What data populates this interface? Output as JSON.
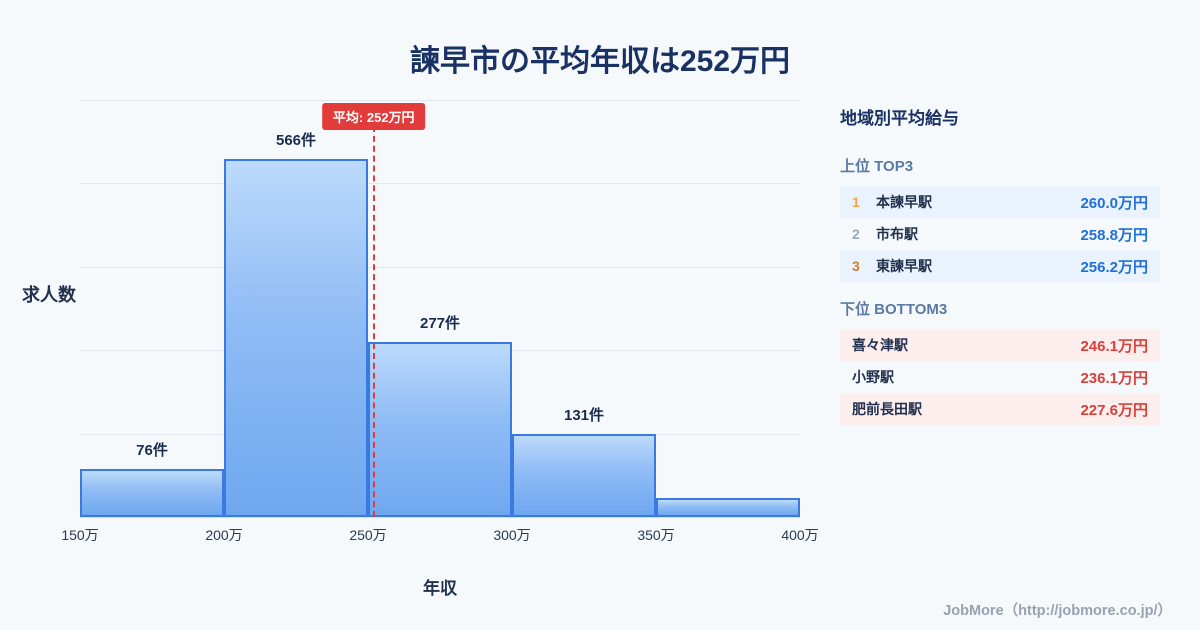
{
  "title": "諫早市の平均年収は252万円",
  "chart_data": {
    "type": "bar",
    "title": "諫早市の平均年収は252万円",
    "xlabel": "年収",
    "ylabel": "求人数",
    "x_ticks": [
      "150万",
      "200万",
      "250万",
      "300万",
      "350万",
      "400万"
    ],
    "x_range_man_yen": [
      150,
      400
    ],
    "ylim": [
      0,
      660
    ],
    "grid": true,
    "legend": "none",
    "bins": [
      {
        "range": "150万-200万",
        "count": 76,
        "label": "76件"
      },
      {
        "range": "200万-250万",
        "count": 566,
        "label": "566件"
      },
      {
        "range": "250万-300万",
        "count": 277,
        "label": "277件"
      },
      {
        "range": "300万-350万",
        "count": 131,
        "label": "131件"
      },
      {
        "range": "350万-400万",
        "count": 30,
        "label": ""
      }
    ],
    "average_line": {
      "value": 252,
      "label": "平均: 252万円"
    }
  },
  "sidebar": {
    "title": "地域別平均給与",
    "top": {
      "heading": "上位 TOP3",
      "rows": [
        {
          "rank": "1",
          "name": "本諫早駅",
          "value": "260.0万円"
        },
        {
          "rank": "2",
          "name": "市布駅",
          "value": "258.8万円"
        },
        {
          "rank": "3",
          "name": "東諫早駅",
          "value": "256.2万円"
        }
      ]
    },
    "bottom": {
      "heading": "下位 BOTTOM3",
      "rows": [
        {
          "name": "喜々津駅",
          "value": "246.1万円"
        },
        {
          "name": "小野駅",
          "value": "236.1万円"
        },
        {
          "name": "肥前長田駅",
          "value": "227.6万円"
        }
      ]
    }
  },
  "footer": "JobMore（http://jobmore.co.jp/）",
  "colors": {
    "background": "#f6f9fc",
    "title_navy": "#1a3263",
    "bar_fill_top": "#bcdafb",
    "bar_fill_bottom": "#6fa7f0",
    "bar_border": "#3a7ade",
    "average_red": "#e23b3b",
    "top_value_blue": "#1f6fd8",
    "bottom_value_red": "#d8403c",
    "rank_gold": "#f2a93b",
    "rank_silver": "#9aa7b5",
    "rank_bronze": "#d07c2e",
    "top_row_bg": "#e9f2fd",
    "bottom_row_bg": "#fdeeee"
  }
}
